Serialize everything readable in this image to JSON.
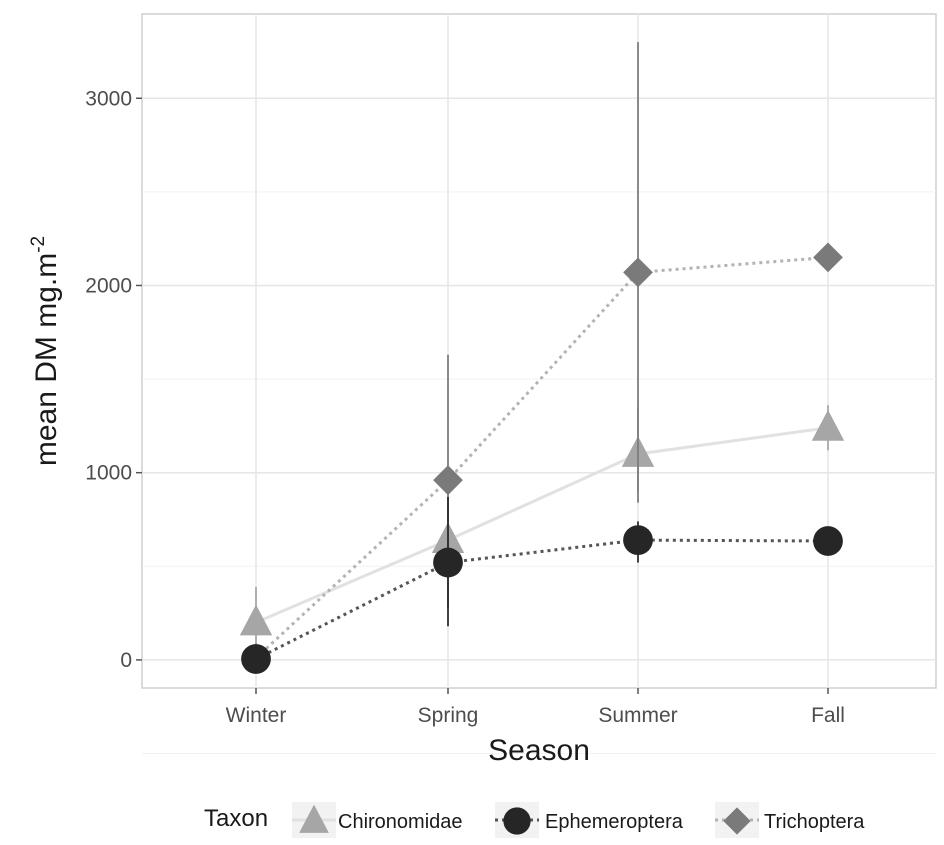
{
  "chart_data": {
    "type": "line",
    "xlabel": "Season",
    "ylabel": "mean DM mg.m",
    "ylabel_superscript": "-2",
    "categories": [
      "Winter",
      "Spring",
      "Summer",
      "Fall"
    ],
    "yticks": [
      0,
      1000,
      2000,
      3000
    ],
    "ylim": [
      -150,
      3450
    ],
    "grid": true,
    "legend_position": "bottom",
    "legend_title": "Taxon",
    "series": [
      {
        "name": "Chironomidae",
        "marker": "triangle",
        "line_style": "solid",
        "color": "#a6a6a6",
        "line_color": "#e1e1e1",
        "values": [
          200,
          640,
          1100,
          1240
        ],
        "error_low": [
          20,
          600,
          900,
          1120
        ],
        "error_high": [
          390,
          680,
          1350,
          1360
        ]
      },
      {
        "name": "Ephemeroptera",
        "marker": "circle",
        "line_style": "dotted",
        "color": "#262626",
        "line_color": "#555555",
        "values": [
          5,
          520,
          640,
          635
        ],
        "error_low": [
          -30,
          180,
          520,
          610
        ],
        "error_high": [
          40,
          870,
          740,
          660
        ]
      },
      {
        "name": "Trichoptera",
        "marker": "diamond",
        "line_style": "dotted",
        "color": "#7a7a7a",
        "line_color": "#b3b3b3",
        "values": [
          10,
          960,
          2070,
          2150
        ],
        "error_low": [
          -20,
          280,
          840,
          2090
        ],
        "error_high": [
          40,
          1630,
          3300,
          2210
        ]
      }
    ]
  }
}
